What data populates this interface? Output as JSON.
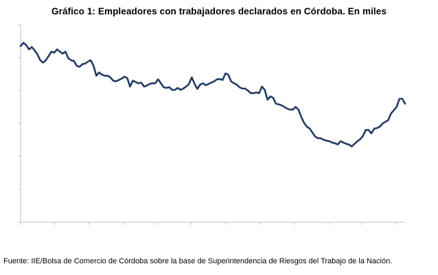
{
  "chart_data": {
    "type": "line",
    "title": "Gráfico 1: Empleadores con trabajadores declarados en Córdoba. En miles",
    "xlabel": "",
    "ylabel": "",
    "ylim": [
      0,
      6
    ],
    "x_tick_count": 12,
    "grid": false,
    "legend": "none",
    "series": [
      {
        "name": "Empleadores",
        "color": "#233a64",
        "values": [
          5.35,
          5.45,
          5.38,
          5.25,
          5.32,
          5.22,
          5.1,
          4.92,
          4.85,
          4.92,
          5.05,
          5.18,
          5.15,
          5.25,
          5.18,
          5.12,
          5.18,
          4.98,
          4.92,
          4.9,
          4.75,
          4.72,
          4.8,
          4.82,
          4.88,
          4.92,
          4.75,
          4.45,
          4.55,
          4.48,
          4.45,
          4.45,
          4.4,
          4.3,
          4.28,
          4.32,
          4.36,
          4.42,
          4.38,
          4.12,
          4.3,
          4.26,
          4.22,
          4.24,
          4.12,
          4.15,
          4.2,
          4.22,
          4.22,
          4.34,
          4.22,
          4.1,
          4.08,
          4.1,
          4.02,
          4.02,
          4.08,
          4.02,
          4.06,
          4.12,
          4.2,
          4.4,
          4.2,
          4.05,
          4.18,
          4.22,
          4.16,
          4.2,
          4.24,
          4.28,
          4.34,
          4.35,
          4.32,
          4.52,
          4.48,
          4.28,
          4.22,
          4.18,
          4.1,
          4.06,
          4.06,
          4.0,
          3.92,
          3.92,
          3.94,
          3.92,
          4.12,
          4.02,
          3.72,
          3.82,
          3.78,
          3.6,
          3.58,
          3.55,
          3.5,
          3.45,
          3.42,
          3.42,
          3.5,
          3.42,
          3.2,
          3.02,
          2.9,
          2.85,
          2.72,
          2.6,
          2.55,
          2.55,
          2.5,
          2.48,
          2.46,
          2.42,
          2.4,
          2.36,
          2.46,
          2.42,
          2.38,
          2.36,
          2.3,
          2.38,
          2.46,
          2.52,
          2.62,
          2.8,
          2.8,
          2.7,
          2.84,
          2.86,
          2.9,
          3.0,
          3.05,
          3.1,
          3.3,
          3.4,
          3.5,
          3.75,
          3.75,
          3.6
        ]
      }
    ]
  },
  "footer": {
    "source": "Fuente: IIE/Bolsa de Comercio de Córdoba sobre la base de Superintendencia de Riesgos del Trabajo de la Nación."
  }
}
